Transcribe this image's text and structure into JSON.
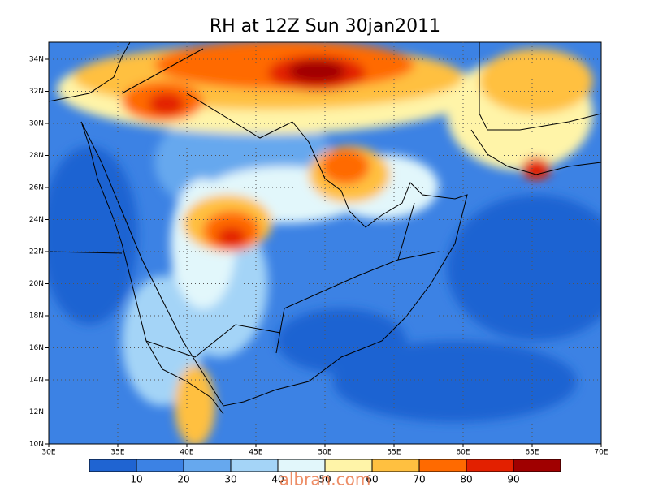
{
  "title": "RH at 12Z Sun 30jan2011",
  "map": {
    "lat_labels": [
      "10N",
      "12N",
      "14N",
      "16N",
      "18N",
      "20N",
      "22N",
      "24N",
      "26N",
      "28N",
      "30N",
      "32N",
      "34N"
    ],
    "lon_labels": [
      "30E",
      "35E",
      "40E",
      "45E",
      "50E",
      "55E",
      "60E",
      "65E",
      "70E"
    ]
  },
  "colorbar": {
    "ticks": [
      10,
      20,
      30,
      40,
      50,
      60,
      70,
      80,
      90
    ],
    "colors": [
      "#1f64d2",
      "#3c82e4",
      "#66a8ee",
      "#a4d4f7",
      "#e2f7fb",
      "#fff4a8",
      "#ffc040",
      "#ff6a00",
      "#e32000",
      "#a00000"
    ]
  },
  "watermark": "albran.com"
}
